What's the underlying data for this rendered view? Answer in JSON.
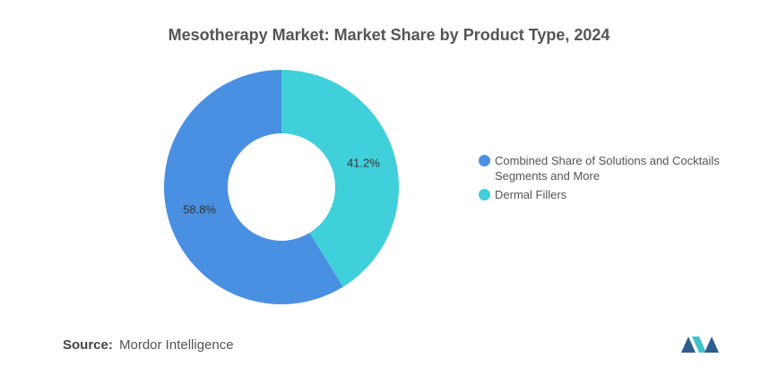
{
  "chart_data": {
    "type": "donut",
    "title": "Mesotherapy Market: Market Share by Product Type, 2024",
    "categories": [
      "Combined Share of Solutions and Cocktails Segments and More",
      "Dermal Fillers"
    ],
    "values": [
      58.8,
      41.2
    ],
    "value_labels": [
      "58.8%",
      "41.2%"
    ],
    "colors": [
      "#4a90e2",
      "#3fd0db"
    ],
    "source_label": "Source:",
    "source": "Mordor Intelligence"
  }
}
